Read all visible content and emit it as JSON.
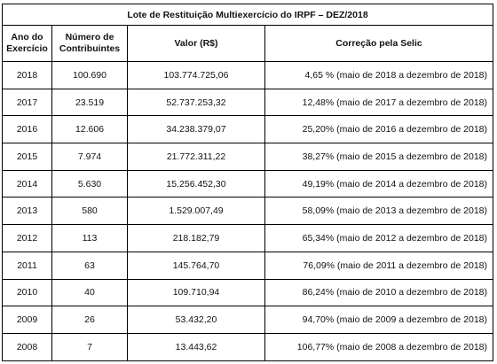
{
  "table": {
    "title": "Lote de Restituição Multiexercício do IRPF – DEZ/2018",
    "headers": [
      "Ano do Exercício",
      "Número de Contribuintes",
      "Valor (R$)",
      "Correção pela Selic"
    ],
    "rows": [
      [
        "2018",
        "100.690",
        "103.774.725,06",
        "4,65 % (maio de 2018 a dezembro de 2018)"
      ],
      [
        "2017",
        "23.519",
        "52.737.253,32",
        "12,48% (maio de 2017 a dezembro de 2018)"
      ],
      [
        "2016",
        "12.606",
        "34.238.379,07",
        "25,20% (maio de 2016 a dezembro de 2018)"
      ],
      [
        "2015",
        "7.974",
        "21.772.311,22",
        "38,27% (maio de 2015 a dezembro de 2018)"
      ],
      [
        "2014",
        "5.630",
        "15.256.452,30",
        "49,19% (maio de 2014 a dezembro de 2018)"
      ],
      [
        "2013",
        "580",
        "1.529.007,49",
        "58,09% (maio de 2013 a dezembro de 2018)"
      ],
      [
        "2012",
        "113",
        "218.182,79",
        "65,34% (maio de 2012 a dezembro de 2018)"
      ],
      [
        "2011",
        "63",
        "145.764,70",
        "76,09% (maio de 2011 a dezembro de 2018)"
      ],
      [
        "2010",
        "40",
        "109.710,94",
        "86,24% (maio de 2010 a dezembro de 2018)"
      ],
      [
        "2009",
        "26",
        "53.432,20",
        "94,70% (maio de 2009 a dezembro de 2018)"
      ],
      [
        "2008",
        "7",
        "13.443,62",
        "106,77% (maio de 2008 a dezembro de 2018)"
      ]
    ]
  }
}
